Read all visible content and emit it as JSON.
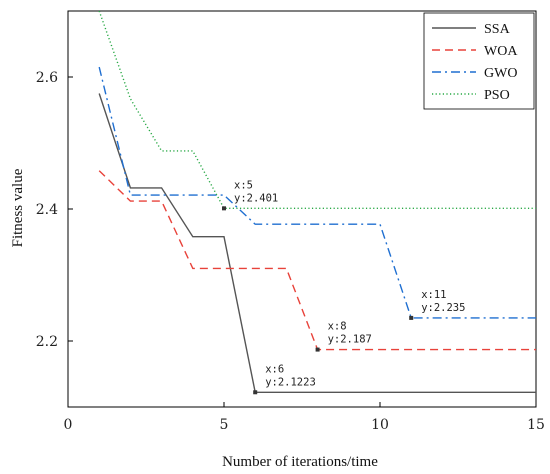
{
  "chart_data": {
    "type": "line",
    "title": "",
    "xlabel": "Number of iterations/time",
    "ylabel": "Fitness value",
    "xlim": [
      0,
      15
    ],
    "ylim": [
      2.1,
      2.7
    ],
    "xticks": [
      0,
      5,
      10,
      15
    ],
    "yticks": [
      2.2,
      2.4,
      2.6
    ],
    "ytick_labels": [
      "2.2",
      "2.4",
      "2.6"
    ],
    "grid": false,
    "legend_position": "top-right",
    "series": [
      {
        "name": "SSA",
        "color": "#555555",
        "style": "solid",
        "points": [
          [
            1,
            2.575
          ],
          [
            2,
            2.432
          ],
          [
            3,
            2.432
          ],
          [
            4,
            2.358
          ],
          [
            5,
            2.358
          ],
          [
            6,
            2.1223
          ],
          [
            15,
            2.1223
          ]
        ]
      },
      {
        "name": "WOA",
        "color": "#e8423a",
        "style": "dashed",
        "points": [
          [
            1,
            2.458
          ],
          [
            2,
            2.412
          ],
          [
            3,
            2.412
          ],
          [
            4,
            2.31
          ],
          [
            7,
            2.31
          ],
          [
            8,
            2.187
          ],
          [
            15,
            2.187
          ]
        ]
      },
      {
        "name": "GWO",
        "color": "#1f6fd1",
        "style": "dashdot",
        "points": [
          [
            1,
            2.615
          ],
          [
            2,
            2.421
          ],
          [
            5,
            2.421
          ],
          [
            6,
            2.377
          ],
          [
            10,
            2.377
          ],
          [
            11,
            2.235
          ],
          [
            15,
            2.235
          ]
        ]
      },
      {
        "name": "PSO",
        "color": "#27a844",
        "style": "dotted",
        "points": [
          [
            1,
            2.7
          ],
          [
            2,
            2.567
          ],
          [
            3,
            2.488
          ],
          [
            4,
            2.488
          ],
          [
            5,
            2.401
          ],
          [
            15,
            2.401
          ]
        ]
      }
    ],
    "annotations": [
      {
        "x": 5,
        "y": 2.401,
        "line1": "x:5",
        "line2": "y:2.401"
      },
      {
        "x": 11,
        "y": 2.235,
        "line1": "x:11",
        "line2": "y:2.235"
      },
      {
        "x": 8,
        "y": 2.187,
        "line1": "x:8",
        "line2": "y:2.187"
      },
      {
        "x": 6,
        "y": 2.1223,
        "line1": "x:6",
        "line2": "y:2.1223"
      }
    ]
  }
}
